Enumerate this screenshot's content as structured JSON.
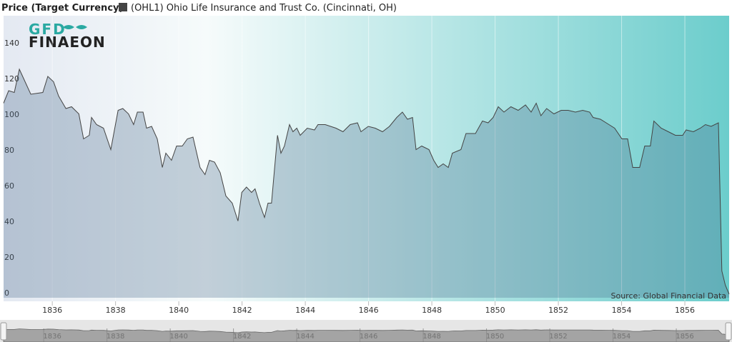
{
  "chart_data": {
    "type": "area",
    "title": "Price (Target Currency)",
    "source": "Source: Global Financial Data",
    "logo": {
      "top": "GFD",
      "bottom": "FINAEON"
    },
    "x": [
      1834.46,
      1834.62,
      1834.8,
      1834.96,
      1835.14,
      1835.32,
      1835.7,
      1835.86,
      1836.04,
      1836.2,
      1836.43,
      1836.61,
      1836.84,
      1836.99,
      1837.17,
      1837.24,
      1837.4,
      1837.62,
      1837.85,
      1838.08,
      1838.23,
      1838.41,
      1838.57,
      1838.69,
      1838.87,
      1838.98,
      1839.14,
      1839.32,
      1839.48,
      1839.59,
      1839.77,
      1839.93,
      1840.11,
      1840.27,
      1840.45,
      1840.67,
      1840.83,
      1840.97,
      1841.13,
      1841.31,
      1841.49,
      1841.69,
      1841.87,
      1841.99,
      1842.14,
      1842.3,
      1842.41,
      1842.55,
      1842.71,
      1842.82,
      1842.93,
      1843.12,
      1843.23,
      1843.34,
      1843.5,
      1843.61,
      1843.73,
      1843.84,
      1844.06,
      1844.29,
      1844.4,
      1844.63,
      1844.97,
      1845.19,
      1845.42,
      1845.65,
      1845.76,
      1845.99,
      1846.21,
      1846.44,
      1846.66,
      1846.89,
      1847.07,
      1847.23,
      1847.39,
      1847.5,
      1847.68,
      1847.91,
      1848.06,
      1848.2,
      1848.36,
      1848.52,
      1848.65,
      1848.92,
      1849.08,
      1849.38,
      1849.6,
      1849.78,
      1849.94,
      1850.1,
      1850.28,
      1850.5,
      1850.73,
      1850.96,
      1851.14,
      1851.3,
      1851.45,
      1851.63,
      1851.86,
      1852.09,
      1852.31,
      1852.54,
      1852.77,
      1852.99,
      1853.1,
      1853.33,
      1853.6,
      1853.78,
      1854.01,
      1854.19,
      1854.35,
      1854.57,
      1854.73,
      1854.91,
      1855.02,
      1855.25,
      1855.48,
      1855.7,
      1855.93,
      1856.04,
      1856.27,
      1856.49,
      1856.65,
      1856.83,
      1857.06,
      1857.17,
      1857.28,
      1857.4
    ],
    "series": [
      {
        "name": "(OHL1) Ohio Life Insurance and Trust Co. (Cincinnati, OH)",
        "color": "#444444",
        "values": [
          109,
          116,
          115,
          128,
          121,
          114,
          115,
          124,
          121,
          113,
          106,
          107,
          103,
          89,
          91,
          101,
          97,
          95,
          83,
          105,
          106,
          103,
          97,
          104,
          104,
          95,
          96,
          89,
          73,
          81,
          77,
          85,
          85,
          89,
          90,
          73,
          69,
          77,
          76,
          70,
          57,
          53,
          43,
          59,
          62,
          59,
          61,
          53,
          45,
          53,
          53,
          91,
          81,
          85,
          97,
          93,
          95,
          91,
          95,
          94,
          97,
          97,
          95,
          93,
          97,
          98,
          93,
          96,
          95,
          93,
          96,
          101,
          104,
          100,
          101,
          83,
          85,
          83,
          77,
          73,
          75,
          73,
          81,
          83,
          92,
          92,
          99,
          98,
          101,
          107,
          104,
          107,
          105,
          108,
          104,
          109,
          102,
          106,
          103,
          105,
          105,
          104,
          105,
          104,
          101,
          100,
          97,
          95,
          89,
          89,
          73,
          73,
          85,
          85,
          99,
          95,
          93,
          91,
          91,
          94,
          93,
          95,
          97,
          96,
          98,
          15,
          7,
          2
        ]
      }
    ],
    "xlim": [
      1834.46,
      1857.4
    ],
    "ylim": [
      -2,
      158
    ],
    "xticks": [
      1836,
      1838,
      1840,
      1842,
      1844,
      1846,
      1848,
      1850,
      1852,
      1854,
      1856
    ],
    "yticks": [
      0,
      20,
      40,
      60,
      80,
      100,
      120,
      140
    ],
    "xgrid": true
  }
}
